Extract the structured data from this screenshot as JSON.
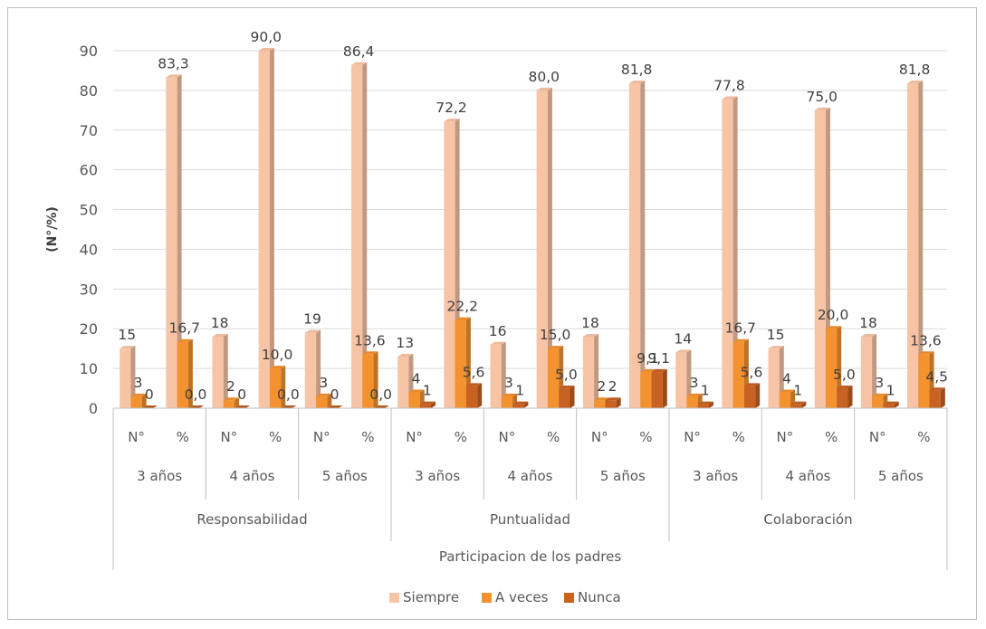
{
  "chart_data": {
    "type": "bar",
    "ylabel": "(N°/%)",
    "xlabel": "Participacion de los padres",
    "ylim": [
      0,
      90
    ],
    "yticks": [
      0,
      10,
      20,
      30,
      40,
      50,
      60,
      70,
      80,
      90
    ],
    "grid": true,
    "legend_position": "bottom",
    "colors": {
      "Siempre": "#f8c4a6",
      "A veces": "#f4922f",
      "Nunca": "#c86222"
    },
    "groups": [
      {
        "label": "Responsabilidad",
        "ages": [
          {
            "label": "3 años",
            "measures": [
              {
                "label": "N°",
                "values": [
                  15,
                  3,
                  0
                ],
                "data_labels": [
                  "15",
                  "3",
                  "0"
                ]
              },
              {
                "label": "%",
                "values": [
                  83.3,
                  16.7,
                  0.0
                ],
                "data_labels": [
                  "83,3",
                  "16,7",
                  "0,0"
                ]
              }
            ]
          },
          {
            "label": "4 años",
            "measures": [
              {
                "label": "N°",
                "values": [
                  18,
                  2,
                  0
                ],
                "data_labels": [
                  "18",
                  "2",
                  "0"
                ]
              },
              {
                "label": "%",
                "values": [
                  90.0,
                  10.0,
                  0.0
                ],
                "data_labels": [
                  "90,0",
                  "10,0",
                  "0,0"
                ]
              }
            ]
          },
          {
            "label": "5 años",
            "measures": [
              {
                "label": "N°",
                "values": [
                  19,
                  3,
                  0
                ],
                "data_labels": [
                  "19",
                  "3",
                  "0"
                ]
              },
              {
                "label": "%",
                "values": [
                  86.4,
                  13.6,
                  0.0
                ],
                "data_labels": [
                  "86,4",
                  "13,6",
                  "0,0"
                ]
              }
            ]
          }
        ]
      },
      {
        "label": "Puntualidad",
        "ages": [
          {
            "label": "3 años",
            "measures": [
              {
                "label": "N°",
                "values": [
                  13,
                  4,
                  1
                ],
                "data_labels": [
                  "13",
                  "4",
                  "1"
                ]
              },
              {
                "label": "%",
                "values": [
                  72.2,
                  22.2,
                  5.6
                ],
                "data_labels": [
                  "72,2",
                  "22,2",
                  "5,6"
                ]
              }
            ]
          },
          {
            "label": "4 años",
            "measures": [
              {
                "label": "N°",
                "values": [
                  16,
                  3,
                  1
                ],
                "data_labels": [
                  "16",
                  "3",
                  "1"
                ]
              },
              {
                "label": "%",
                "values": [
                  80.0,
                  15.0,
                  5.0
                ],
                "data_labels": [
                  "80,0",
                  "15,0",
                  "5,0"
                ]
              }
            ]
          },
          {
            "label": "5 años",
            "measures": [
              {
                "label": "N°",
                "values": [
                  18,
                  2,
                  2
                ],
                "data_labels": [
                  "18",
                  "2",
                  "2"
                ]
              },
              {
                "label": "%",
                "values": [
                  81.8,
                  9.1,
                  9.1
                ],
                "data_labels": [
                  "81,8",
                  "9,1",
                  "9,1"
                ]
              }
            ]
          }
        ]
      },
      {
        "label": "Colaboración",
        "ages": [
          {
            "label": "3 años",
            "measures": [
              {
                "label": "N°",
                "values": [
                  14,
                  3,
                  1
                ],
                "data_labels": [
                  "14",
                  "3",
                  "1"
                ]
              },
              {
                "label": "%",
                "values": [
                  77.8,
                  16.7,
                  5.6
                ],
                "data_labels": [
                  "77,8",
                  "16,7",
                  "5,6"
                ]
              }
            ]
          },
          {
            "label": "4 años",
            "measures": [
              {
                "label": "N°",
                "values": [
                  15,
                  4,
                  1
                ],
                "data_labels": [
                  "15",
                  "4",
                  "1"
                ]
              },
              {
                "label": "%",
                "values": [
                  75.0,
                  20.0,
                  5.0
                ],
                "data_labels": [
                  "75,0",
                  "20,0",
                  "5,0"
                ]
              }
            ]
          },
          {
            "label": "5 años",
            "measures": [
              {
                "label": "N°",
                "values": [
                  18,
                  3,
                  1
                ],
                "data_labels": [
                  "18",
                  "3",
                  "1"
                ]
              },
              {
                "label": "%",
                "values": [
                  81.8,
                  13.6,
                  4.5
                ],
                "data_labels": [
                  "81,8",
                  "13,6",
                  "4,5"
                ]
              }
            ]
          }
        ]
      }
    ],
    "series": [
      {
        "name": "Siempre"
      },
      {
        "name": "A veces"
      },
      {
        "name": "Nunca"
      }
    ]
  }
}
